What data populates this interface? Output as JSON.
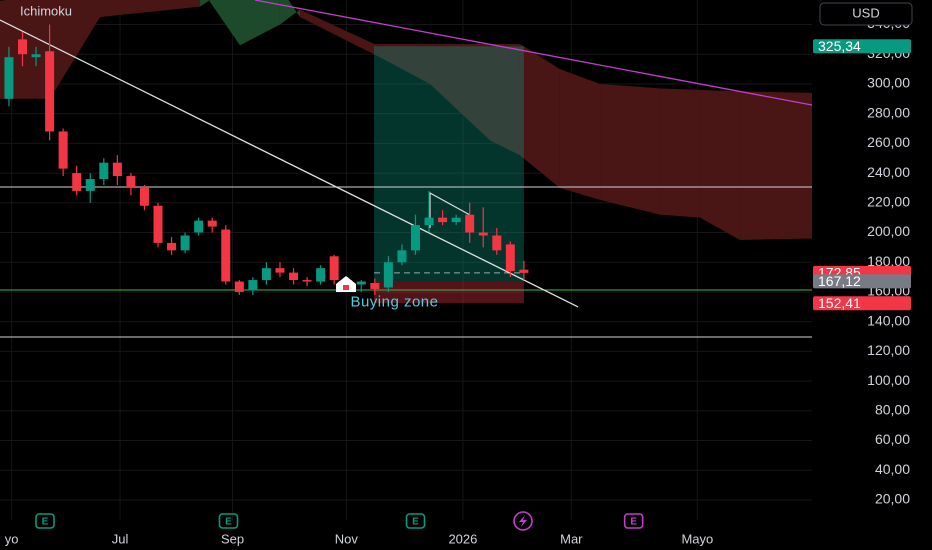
{
  "chart_data": {
    "type": "candlestick",
    "title": "Ichimoku",
    "currency": "USD",
    "up_color": "#089981",
    "down_color": "#f23645",
    "x": [
      0,
      1,
      2,
      3,
      4,
      5,
      6,
      7,
      8,
      9,
      10,
      11,
      12,
      13,
      14,
      15,
      16,
      17,
      18,
      19,
      20,
      21,
      22,
      23,
      24,
      25,
      26,
      27,
      28,
      29,
      30,
      31,
      32,
      33,
      34,
      35,
      36,
      37,
      38
    ],
    "open": [
      290,
      330,
      318,
      322,
      268,
      240,
      228,
      236,
      247,
      238,
      230,
      218,
      193,
      188,
      200,
      208,
      202,
      167,
      161,
      168,
      176,
      173,
      168,
      167,
      184,
      168,
      165,
      166,
      163,
      180,
      188,
      205,
      210,
      207,
      212,
      200,
      198,
      192,
      175
    ],
    "high": [
      325,
      335,
      325,
      340,
      270,
      245,
      240,
      250,
      252,
      240,
      232,
      220,
      197,
      200,
      210,
      210,
      205,
      168,
      170,
      180,
      180,
      176,
      170,
      178,
      185,
      170,
      168,
      169,
      184,
      192,
      212,
      228,
      215,
      212,
      220,
      217,
      203,
      194,
      181
    ],
    "low": [
      285,
      312,
      312,
      262,
      238,
      225,
      220,
      232,
      232,
      225,
      215,
      190,
      185,
      186,
      198,
      200,
      165,
      158,
      158,
      165,
      170,
      165,
      164,
      165,
      165,
      160,
      160,
      158,
      160,
      178,
      185,
      200,
      205,
      205,
      193,
      190,
      185,
      170,
      168
    ],
    "close": [
      318,
      320,
      320,
      268,
      243,
      228,
      236,
      247,
      238,
      230,
      218,
      193,
      188,
      198,
      208,
      204,
      167,
      160,
      168,
      176,
      173,
      168,
      167,
      176,
      168,
      164,
      167,
      162,
      180,
      188,
      205,
      210,
      207,
      210,
      200,
      198,
      188,
      174,
      172.85
    ],
    "xlim": [
      -0.66,
      59.26
    ],
    "ylim": [
      6.5,
      356.5
    ],
    "xticks": [
      {
        "value": 0.2,
        "label": "yo"
      },
      {
        "value": 8.2,
        "label": "Jul"
      },
      {
        "value": 16.5,
        "label": "Sep"
      },
      {
        "value": 24.9,
        "label": "Nov"
      },
      {
        "value": 33.5,
        "label": "2026"
      },
      {
        "value": 41.5,
        "label": "Mar"
      },
      {
        "value": 50.8,
        "label": "Mayo"
      }
    ],
    "yticks": [
      {
        "value": 20,
        "label": "20,00"
      },
      {
        "value": 40,
        "label": "40,00"
      },
      {
        "value": 60,
        "label": "60,00"
      },
      {
        "value": 80,
        "label": "80,00"
      },
      {
        "value": 100,
        "label": "100,00"
      },
      {
        "value": 120,
        "label": "120,00"
      },
      {
        "value": 140,
        "label": "140,00"
      },
      {
        "value": 160,
        "label": "160,00"
      },
      {
        "value": 180,
        "label": "180,00"
      },
      {
        "value": 200,
        "label": "200,00"
      },
      {
        "value": 220,
        "label": "220,00"
      },
      {
        "value": 240,
        "label": "240,00"
      },
      {
        "value": 260,
        "label": "260,00"
      },
      {
        "value": 280,
        "label": "280,00"
      },
      {
        "value": 300,
        "label": "300,00"
      },
      {
        "value": 320,
        "label": "320,00"
      },
      {
        "value": 340,
        "label": "340,00"
      }
    ],
    "grid": true,
    "price_labels": [
      {
        "value": 325.34,
        "label": "325,34",
        "color": "#089981"
      },
      {
        "value": 172.85,
        "label": "172,85",
        "color": "#f23645"
      },
      {
        "value": 167.12,
        "label": "167,12",
        "color": "#787b86"
      },
      {
        "value": 152.41,
        "label": "152,41",
        "color": "#f23645"
      }
    ],
    "ichimoku": {
      "x": [
        -0.66,
        3.03,
        6.72,
        14.1,
        17.05,
        20.0,
        21.48,
        26.94,
        31.07,
        35.5,
        37.71,
        40.66,
        43.62,
        48.04,
        51.0,
        53.95,
        59.26
      ],
      "span_a": [
        290,
        290,
        345,
        352,
        370,
        365,
        345,
        320,
        300,
        262,
        252,
        230,
        222,
        212,
        210,
        195,
        196
      ],
      "span_b": [
        356,
        360,
        370,
        365,
        326,
        340,
        350,
        327,
        327,
        327,
        327,
        310,
        300,
        297,
        296,
        295,
        294
      ]
    },
    "levels": [
      {
        "value": 230.6,
        "color": "#d1d4dc"
      },
      {
        "value": 129.7,
        "color": "#d1d4dc"
      },
      {
        "value": 161.3,
        "color": "#4caf50"
      }
    ],
    "trend_lines": [
      {
        "x": [
          -0.66,
          42.0
        ],
        "y": [
          343,
          149.9
        ],
        "color": "#e0e0e0"
      },
      {
        "x": [
          18.15,
          59.26
        ],
        "y": [
          356.5,
          285.8
        ],
        "color": "#c040c8"
      }
    ],
    "position": {
      "x": [
        26.94,
        38.0
      ]
    },
    "annotation": {
      "text": "Buying zone",
      "x": 25.2,
      "y": 153
    },
    "events": [
      {
        "x": 2.66,
        "label": "E",
        "color": "#089981"
      },
      {
        "x": 16.2,
        "label": "E",
        "color": "#089981"
      },
      {
        "x": 30.0,
        "label": "E",
        "color": "#089981"
      },
      {
        "x": 46.1,
        "label": "E",
        "color": "#c040c8"
      }
    ]
  }
}
